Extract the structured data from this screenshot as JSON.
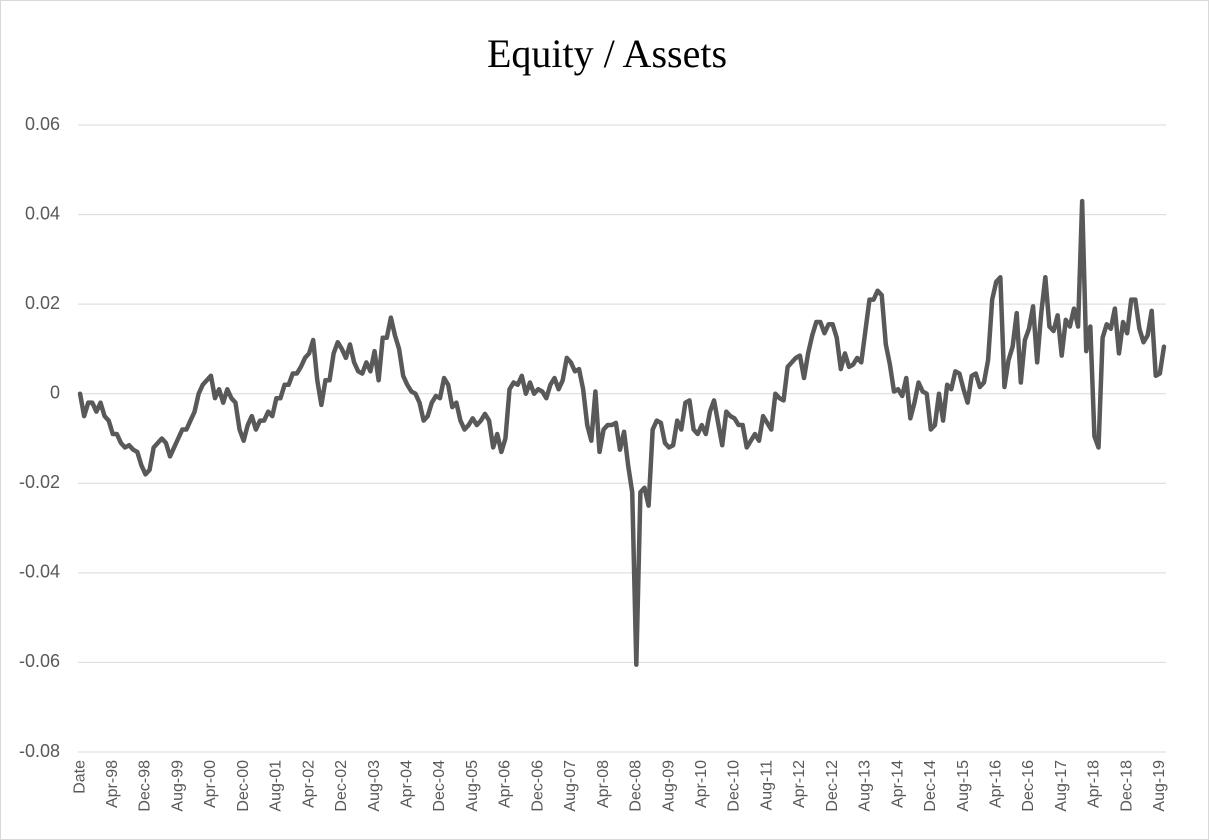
{
  "chart_data": {
    "type": "line",
    "title": "Equity / Assets",
    "categories": [
      "Date",
      null,
      null,
      null,
      null,
      null,
      null,
      null,
      "Apr-98",
      null,
      null,
      null,
      null,
      null,
      null,
      null,
      "Dec-98",
      null,
      null,
      null,
      null,
      null,
      null,
      null,
      "Aug-99",
      null,
      null,
      null,
      null,
      null,
      null,
      null,
      "Apr-00",
      null,
      null,
      null,
      null,
      null,
      null,
      null,
      "Dec-00",
      null,
      null,
      null,
      null,
      null,
      null,
      null,
      "Aug-01",
      null,
      null,
      null,
      null,
      null,
      null,
      null,
      "Apr-02",
      null,
      null,
      null,
      null,
      null,
      null,
      null,
      "Dec-02",
      null,
      null,
      null,
      null,
      null,
      null,
      null,
      "Aug-03",
      null,
      null,
      null,
      null,
      null,
      null,
      null,
      "Apr-04",
      null,
      null,
      null,
      null,
      null,
      null,
      null,
      "Dec-04",
      null,
      null,
      null,
      null,
      null,
      null,
      null,
      "Aug-05",
      null,
      null,
      null,
      null,
      null,
      null,
      null,
      "Apr-06",
      null,
      null,
      null,
      null,
      null,
      null,
      null,
      "Dec-06",
      null,
      null,
      null,
      null,
      null,
      null,
      null,
      "Aug-07",
      null,
      null,
      null,
      null,
      null,
      null,
      null,
      "Apr-08",
      null,
      null,
      null,
      null,
      null,
      null,
      null,
      "Dec-08",
      null,
      null,
      null,
      null,
      null,
      null,
      null,
      "Aug-09",
      null,
      null,
      null,
      null,
      null,
      null,
      null,
      "Apr-10",
      null,
      null,
      null,
      null,
      null,
      null,
      null,
      "Dec-10",
      null,
      null,
      null,
      null,
      null,
      null,
      null,
      "Aug-11",
      null,
      null,
      null,
      null,
      null,
      null,
      null,
      "Apr-12",
      null,
      null,
      null,
      null,
      null,
      null,
      null,
      "Dec-12",
      null,
      null,
      null,
      null,
      null,
      null,
      null,
      "Aug-13",
      null,
      null,
      null,
      null,
      null,
      null,
      null,
      "Apr-14",
      null,
      null,
      null,
      null,
      null,
      null,
      null,
      "Dec-14",
      null,
      null,
      null,
      null,
      null,
      null,
      null,
      "Aug-15",
      null,
      null,
      null,
      null,
      null,
      null,
      null,
      "Apr-16",
      null,
      null,
      null,
      null,
      null,
      null,
      null,
      "Dec-16",
      null,
      null,
      null,
      null,
      null,
      null,
      null,
      "Aug-17",
      null,
      null,
      null,
      null,
      null,
      null,
      null,
      "Apr-18",
      null,
      null,
      null,
      null,
      null,
      null,
      null,
      "Dec-18",
      null,
      null,
      null,
      null,
      null,
      null,
      null,
      "Aug-19",
      null
    ],
    "values": [
      0.0,
      -0.005,
      -0.002,
      -0.002,
      -0.004,
      -0.002,
      -0.005,
      -0.006,
      -0.009,
      -0.009,
      -0.011,
      -0.012,
      -0.0115,
      -0.0125,
      -0.013,
      -0.016,
      -0.018,
      -0.017,
      -0.012,
      -0.011,
      -0.01,
      -0.011,
      -0.014,
      -0.012,
      -0.01,
      -0.008,
      -0.008,
      -0.006,
      -0.004,
      0.0,
      0.002,
      0.003,
      0.004,
      -0.001,
      0.001,
      -0.002,
      0.001,
      -0.001,
      -0.002,
      -0.008,
      -0.0105,
      -0.007,
      -0.005,
      -0.008,
      -0.006,
      -0.006,
      -0.004,
      -0.005,
      -0.001,
      -0.001,
      0.002,
      0.002,
      0.0045,
      0.0045,
      0.006,
      0.008,
      0.009,
      0.012,
      0.003,
      -0.0025,
      0.003,
      0.003,
      0.009,
      0.0115,
      0.01,
      0.008,
      0.011,
      0.007,
      0.005,
      0.0045,
      0.007,
      0.005,
      0.0095,
      0.003,
      0.0125,
      0.0125,
      0.017,
      0.013,
      0.01,
      0.004,
      0.002,
      0.0005,
      0.0,
      -0.002,
      -0.006,
      -0.005,
      -0.002,
      -0.0005,
      -0.001,
      0.0035,
      0.002,
      -0.003,
      -0.002,
      -0.006,
      -0.008,
      -0.007,
      -0.0055,
      -0.007,
      -0.006,
      -0.0045,
      -0.006,
      -0.012,
      -0.009,
      -0.013,
      -0.01,
      0.001,
      0.0025,
      0.002,
      0.004,
      0.0,
      0.0025,
      0.0,
      0.001,
      0.0005,
      -0.001,
      0.002,
      0.0035,
      0.001,
      0.003,
      0.008,
      0.007,
      0.005,
      0.0055,
      0.001,
      -0.007,
      -0.0105,
      0.0005,
      -0.013,
      -0.008,
      -0.007,
      -0.007,
      -0.0065,
      -0.0125,
      -0.0085,
      -0.016,
      -0.022,
      -0.0605,
      -0.022,
      -0.021,
      -0.025,
      -0.008,
      -0.006,
      -0.0065,
      -0.011,
      -0.012,
      -0.0115,
      -0.006,
      -0.008,
      -0.002,
      -0.0015,
      -0.008,
      -0.009,
      -0.007,
      -0.009,
      -0.004,
      -0.0015,
      -0.0065,
      -0.0115,
      -0.004,
      -0.005,
      -0.0055,
      -0.007,
      -0.007,
      -0.012,
      -0.0105,
      -0.009,
      -0.0105,
      -0.005,
      -0.0065,
      -0.008,
      0.0,
      -0.001,
      -0.0015,
      0.006,
      0.007,
      0.008,
      0.0085,
      0.0035,
      0.009,
      0.013,
      0.016,
      0.016,
      0.0135,
      0.0155,
      0.0155,
      0.0125,
      0.0055,
      0.009,
      0.006,
      0.0065,
      0.008,
      0.007,
      0.014,
      0.021,
      0.021,
      0.023,
      0.022,
      0.011,
      0.0065,
      0.0005,
      0.001,
      -0.0005,
      0.0035,
      -0.0055,
      -0.002,
      0.0025,
      0.0005,
      0.0,
      -0.008,
      -0.007,
      0.0,
      -0.006,
      0.002,
      0.001,
      0.005,
      0.0045,
      0.001,
      -0.002,
      0.004,
      0.0045,
      0.0015,
      0.0025,
      0.0075,
      0.021,
      0.025,
      0.026,
      0.0015,
      0.0075,
      0.0105,
      0.018,
      0.0025,
      0.012,
      0.0145,
      0.0195,
      0.007,
      0.018,
      0.026,
      0.015,
      0.014,
      0.0175,
      0.0085,
      0.0165,
      0.015,
      0.019,
      0.015,
      0.043,
      0.0095,
      0.015,
      -0.0095,
      -0.012,
      0.0125,
      0.0155,
      0.0145,
      0.019,
      0.009,
      0.016,
      0.0135,
      0.021,
      0.021,
      0.0145,
      0.0115,
      0.013,
      0.0185,
      0.004,
      0.0045,
      0.0105
    ],
    "color": "#595959",
    "ylim": [
      -0.08,
      0.06
    ],
    "yticks": [
      -0.08,
      -0.06,
      -0.04,
      -0.02,
      0,
      0.02,
      0.04,
      0.06
    ],
    "grid": true
  }
}
